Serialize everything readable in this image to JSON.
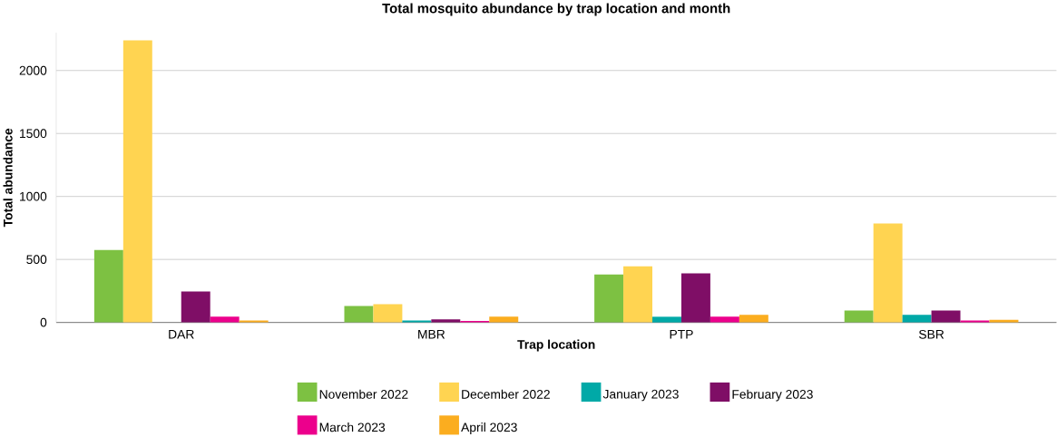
{
  "chart_data": {
    "type": "bar",
    "title": "Total mosquito abundance by trap location and month",
    "xlabel": "Trap location",
    "ylabel": "Total abundance",
    "categories": [
      "DAR",
      "MBR",
      "PTP",
      "SBR"
    ],
    "series": [
      {
        "name": "November 2022",
        "color": "#7dc142",
        "values": [
          575,
          130,
          380,
          95
        ]
      },
      {
        "name": "December 2022",
        "color": "#ffd451",
        "values": [
          2240,
          145,
          445,
          785
        ]
      },
      {
        "name": "January 2023",
        "color": "#00a9a7",
        "values": [
          0,
          15,
          45,
          60
        ]
      },
      {
        "name": "February 2023",
        "color": "#7f0e66",
        "values": [
          245,
          25,
          390,
          95
        ]
      },
      {
        "name": "March 2023",
        "color": "#ec008c",
        "values": [
          45,
          12,
          45,
          15
        ]
      },
      {
        "name": "April 2023",
        "color": "#fbad1f",
        "values": [
          15,
          45,
          60,
          20
        ]
      }
    ],
    "ylim": [
      0,
      2300
    ],
    "yticks": [
      0,
      500,
      1000,
      1500,
      2000
    ],
    "grid": "y",
    "legend": "bottom"
  }
}
